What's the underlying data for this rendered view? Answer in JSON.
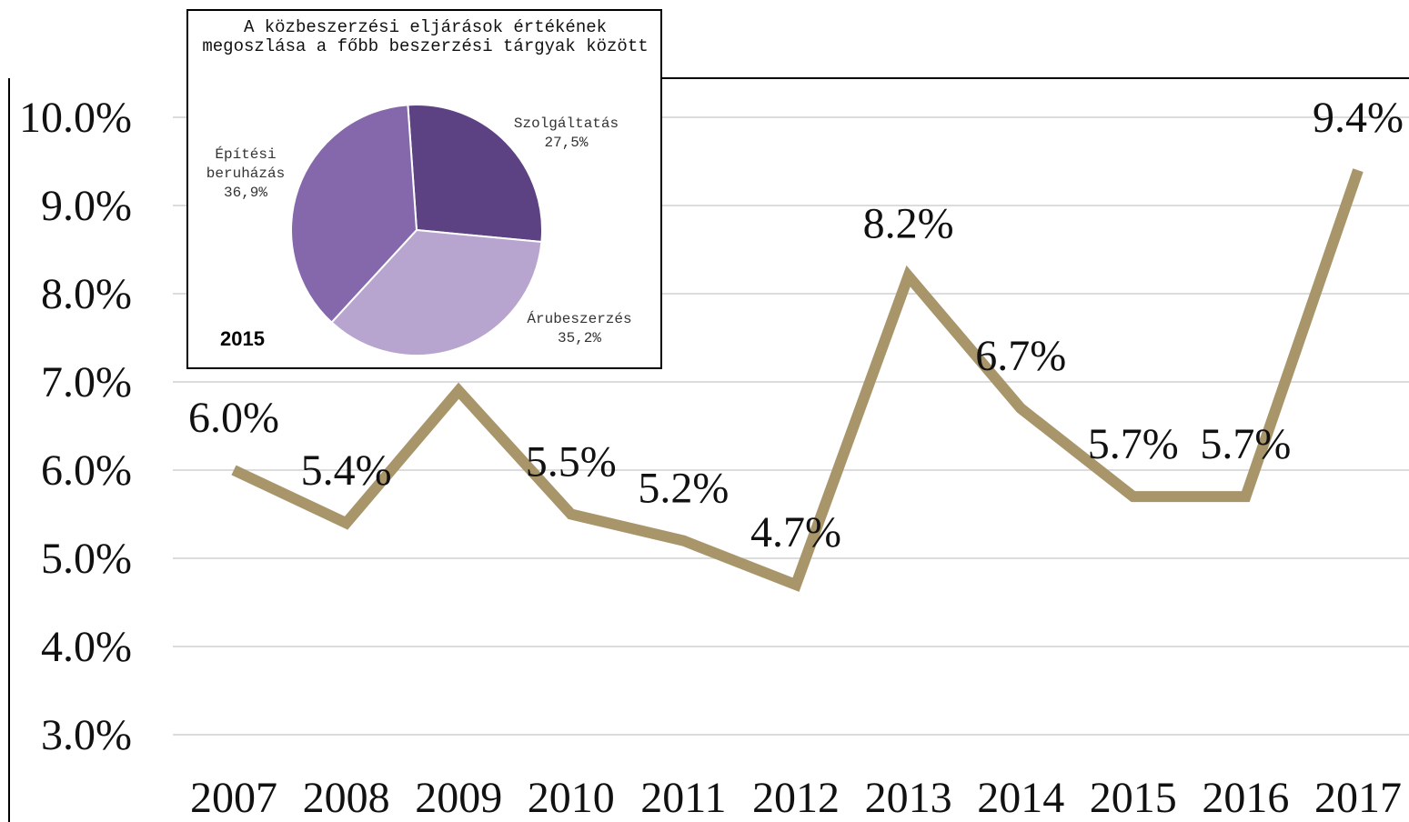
{
  "chart_data": [
    {
      "type": "line",
      "categories": [
        "2007",
        "2008",
        "2009",
        "2010",
        "2011",
        "2012",
        "2013",
        "2014",
        "2015",
        "2016",
        "2017"
      ],
      "series": [
        {
          "name": null,
          "color": "#a8956a",
          "values": [
            6.0,
            5.4,
            6.9,
            5.5,
            5.2,
            4.7,
            8.2,
            6.7,
            5.7,
            5.7,
            9.4
          ],
          "value_labels": [
            "6.0%",
            "5.4%",
            null,
            "5.5%",
            "5.2%",
            "4.7%",
            "8.2%",
            "6.7%",
            "5.7%",
            "5.7%",
            "9.4%"
          ]
        }
      ],
      "ylim": [
        3,
        10
      ],
      "yticks": [
        {
          "value": 3,
          "label": "3.0%"
        },
        {
          "value": 4,
          "label": "4.0%"
        },
        {
          "value": 5,
          "label": "5.0%"
        },
        {
          "value": 6,
          "label": "6.0%"
        },
        {
          "value": 7,
          "label": "7.0%"
        },
        {
          "value": 8,
          "label": "8.0%"
        },
        {
          "value": 9,
          "label": "9.0%"
        },
        {
          "value": 10,
          "label": "10.0%"
        }
      ],
      "grid": true
    },
    {
      "type": "pie",
      "title": "A közbeszerzési eljárások értékének megoszlása a főbb beszerzési tárgyak között",
      "annotation": "2015",
      "categories": [
        "Szolgáltatás",
        "Árubeszerzés",
        "Építési beruházás"
      ],
      "values": [
        27.5,
        35.2,
        36.9
      ],
      "value_labels": [
        "27,5%",
        "35,2%",
        "36,9%"
      ],
      "colors": [
        "#5c4282",
        "#b8a5cf",
        "#8567ab"
      ]
    }
  ]
}
